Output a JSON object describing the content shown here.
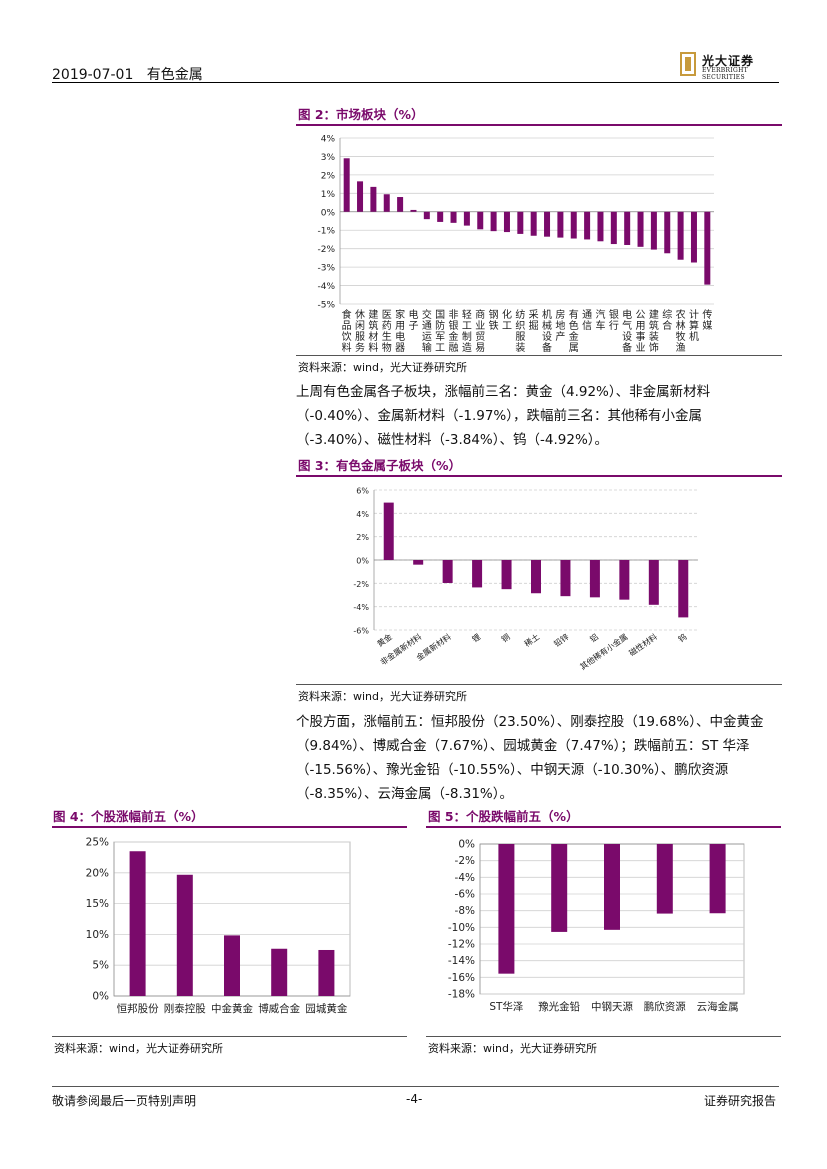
{
  "header": {
    "date": "2019-07-01",
    "section": "有色金属",
    "logo_name": "光大证券",
    "logo_sub": "EVERBRIGHT SECURITIES"
  },
  "fig2": {
    "title": "图 2：市场板块（%）",
    "source": "资料来源：wind，光大证券研究所"
  },
  "para1": "上周有色金属各子板块，涨幅前三名：黄金（4.92%）、非金属新材料（-0.40%）、金属新材料（-1.97%），跌幅前三名：其他稀有小金属（-3.40%）、磁性材料（-3.84%）、钨（-4.92%）。",
  "fig3": {
    "title": "图 3：有色金属子板块（%）",
    "source": "资料来源：wind，光大证券研究所"
  },
  "para2": "个股方面，涨幅前五：恒邦股份（23.50%）、刚泰控股（19.68%）、中金黄金（9.84%）、博威合金（7.67%）、园城黄金（7.47%）；跌幅前五：ST 华泽（-15.56%）、豫光金铅（-10.55%）、中钢天源（-10.30%）、鹏欣资源（-8.35%）、云海金属（-8.31%）。",
  "fig4": {
    "title": "图 4：个股涨幅前五（%）",
    "source": "资料来源：wind，光大证券研究所"
  },
  "fig5": {
    "title": "图 5：个股跌幅前五（%）",
    "source": "资料来源：wind，光大证券研究所"
  },
  "footer": {
    "left": "敬请参阅最后一页特别声明",
    "center": "-4-",
    "right": "证券研究报告"
  },
  "chart_data": [
    {
      "id": "fig2",
      "type": "bar",
      "color": "#7a0a6b",
      "ylim": [
        -5,
        4
      ],
      "yticks": [
        4,
        3,
        2,
        1,
        0,
        -1,
        -2,
        -3,
        -4,
        -5
      ],
      "tick_suffix": "%",
      "categories": [
        "食品饮料",
        "休闲服务",
        "建筑材料",
        "医药生物",
        "家用电器",
        "电子",
        "交通运输",
        "国防军工",
        "非银金融",
        "轻工制造",
        "商业贸易",
        "钢铁",
        "化工",
        "纺织服装",
        "采掘",
        "机械设备",
        "房地产",
        "有色金属",
        "通信",
        "汽车",
        "银行",
        "电气设备",
        "公用事业",
        "建筑装饰",
        "综合",
        "农林牧渔",
        "计算机",
        "传媒"
      ],
      "values": [
        2.9,
        1.65,
        1.35,
        0.95,
        0.8,
        0.1,
        -0.4,
        -0.55,
        -0.6,
        -0.75,
        -0.95,
        -1.05,
        -1.1,
        -1.2,
        -1.3,
        -1.35,
        -1.4,
        -1.45,
        -1.5,
        -1.6,
        -1.75,
        -1.8,
        -1.9,
        -2.05,
        -2.25,
        -2.6,
        -2.75,
        -3.95
      ]
    },
    {
      "id": "fig3",
      "type": "bar",
      "color": "#7a0a6b",
      "ylim": [
        -6,
        6
      ],
      "yticks": [
        6,
        4,
        2,
        0,
        -2,
        -4,
        -6
      ],
      "tick_suffix": "%",
      "categories": [
        "黄金",
        "非金属新材料",
        "金属新材料",
        "锂",
        "铜",
        "稀土",
        "铅锌",
        "铝",
        "其他稀有小金属",
        "磁性材料",
        "钨"
      ],
      "values": [
        4.92,
        -0.4,
        -1.97,
        -2.35,
        -2.5,
        -2.85,
        -3.1,
        -3.2,
        -3.4,
        -3.84,
        -4.92
      ]
    },
    {
      "id": "fig4",
      "type": "bar",
      "color": "#7a0a6b",
      "ylim": [
        0,
        25
      ],
      "yticks": [
        25,
        20,
        15,
        10,
        5,
        0
      ],
      "tick_suffix": "%",
      "categories": [
        "恒邦股份",
        "刚泰控股",
        "中金黄金",
        "博威合金",
        "园城黄金"
      ],
      "values": [
        23.5,
        19.68,
        9.84,
        7.67,
        7.47
      ]
    },
    {
      "id": "fig5",
      "type": "bar",
      "color": "#7a0a6b",
      "ylim": [
        -18,
        0
      ],
      "yticks": [
        0,
        -2,
        -4,
        -6,
        -8,
        -10,
        -12,
        -14,
        -16,
        -18
      ],
      "tick_suffix": "%",
      "categories": [
        "ST华泽",
        "豫光金铅",
        "中钢天源",
        "鹏欣资源",
        "云海金属"
      ],
      "values": [
        -15.56,
        -10.55,
        -10.3,
        -8.35,
        -8.31
      ]
    }
  ]
}
